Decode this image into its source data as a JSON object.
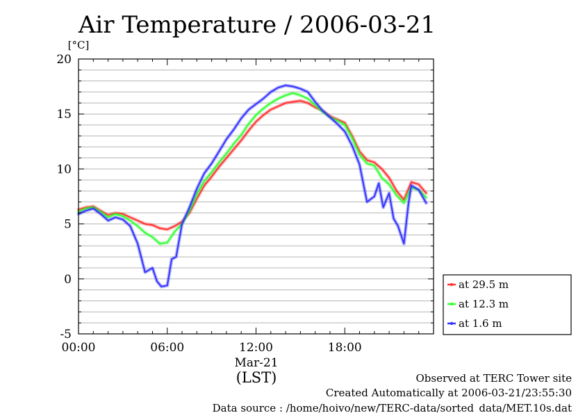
{
  "chart_data": {
    "type": "line",
    "title": "Air Temperature / 2006-03-21",
    "ylabel": "[°C]",
    "xlabel": "(LST)",
    "date_label": "Mar-21",
    "ylim": [
      -5,
      20
    ],
    "xlim_hours": [
      0,
      24
    ],
    "yticks": [
      {
        "value": -5,
        "label": "-5"
      },
      {
        "value": 0,
        "label": "0"
      },
      {
        "value": 5,
        "label": "5"
      },
      {
        "value": 10,
        "label": "10"
      },
      {
        "value": 15,
        "label": "15"
      },
      {
        "value": 20,
        "label": "20"
      }
    ],
    "xticks": [
      {
        "value": 0,
        "label": "00:00"
      },
      {
        "value": 6,
        "label": "06:00"
      },
      {
        "value": 12,
        "label": "12:00"
      },
      {
        "value": 18,
        "label": "18:00"
      }
    ],
    "grid": true,
    "legend_position": "right-bottom",
    "series": [
      {
        "name": "at 29.5 m",
        "color": "#ff3333",
        "x": [
          0,
          0.5,
          1,
          1.5,
          2,
          2.5,
          3,
          3.5,
          4,
          4.5,
          5,
          5.5,
          6,
          6.5,
          7,
          7.5,
          8,
          8.5,
          9,
          9.5,
          10,
          10.5,
          11,
          11.5,
          12,
          12.5,
          13,
          13.5,
          14,
          14.5,
          15,
          15.5,
          16,
          16.5,
          17,
          17.5,
          18,
          18.5,
          19,
          19.5,
          20,
          20.5,
          21,
          21.5,
          22,
          22.5,
          23,
          23.5
        ],
        "y": [
          6.3,
          6.5,
          6.6,
          6.2,
          5.8,
          6.0,
          5.9,
          5.6,
          5.3,
          5.0,
          4.9,
          4.6,
          4.5,
          4.8,
          5.2,
          6.0,
          7.3,
          8.5,
          9.3,
          10.2,
          11.0,
          11.8,
          12.6,
          13.5,
          14.3,
          14.9,
          15.4,
          15.7,
          16.0,
          16.1,
          16.2,
          16.0,
          15.6,
          15.3,
          14.8,
          14.5,
          14.2,
          13.0,
          11.6,
          10.8,
          10.6,
          10.0,
          9.2,
          8.0,
          7.2,
          8.8,
          8.6,
          7.8
        ]
      },
      {
        "name": "at 12.3 m",
        "color": "#33ff33",
        "x": [
          0,
          0.5,
          1,
          1.5,
          2,
          2.5,
          3,
          3.5,
          4,
          4.5,
          5,
          5.5,
          6,
          6.5,
          7,
          7.5,
          8,
          8.5,
          9,
          9.5,
          10,
          10.5,
          11,
          11.5,
          12,
          12.5,
          13,
          13.5,
          14,
          14.5,
          15,
          15.5,
          16,
          16.5,
          17,
          17.5,
          18,
          18.5,
          19,
          19.5,
          20,
          20.5,
          21,
          21.5,
          22,
          22.5,
          23,
          23.5
        ],
        "y": [
          6.1,
          6.4,
          6.5,
          6.1,
          5.6,
          5.9,
          5.7,
          5.3,
          4.8,
          4.2,
          3.8,
          3.2,
          3.3,
          4.3,
          5.0,
          6.2,
          7.7,
          8.9,
          9.7,
          10.6,
          11.4,
          12.3,
          13.1,
          14.1,
          14.9,
          15.5,
          16.0,
          16.4,
          16.7,
          16.9,
          16.7,
          16.4,
          15.8,
          15.2,
          14.7,
          14.4,
          14.0,
          12.8,
          11.3,
          10.5,
          10.3,
          9.2,
          8.6,
          7.6,
          6.9,
          8.3,
          8.1,
          7.4
        ]
      },
      {
        "name": "at 1.6 m",
        "color": "#3333ff",
        "x": [
          0,
          0.5,
          1,
          1.5,
          2,
          2.5,
          3,
          3.5,
          4,
          4.5,
          5,
          5.3,
          5.6,
          6,
          6.3,
          6.6,
          7,
          7.5,
          8,
          8.5,
          9,
          9.5,
          10,
          10.5,
          11,
          11.5,
          12,
          12.5,
          13,
          13.5,
          14,
          14.5,
          15,
          15.5,
          16,
          16.5,
          17,
          17.5,
          18,
          18.5,
          19,
          19.5,
          20,
          20.3,
          20.6,
          21,
          21.3,
          21.6,
          22,
          22.3,
          22.5,
          23,
          23.5
        ],
        "y": [
          5.9,
          6.2,
          6.4,
          5.9,
          5.3,
          5.6,
          5.4,
          4.8,
          3.2,
          0.6,
          1.0,
          -0.2,
          -0.7,
          -0.6,
          1.8,
          2.0,
          5.0,
          6.5,
          8.2,
          9.6,
          10.5,
          11.6,
          12.7,
          13.6,
          14.6,
          15.4,
          15.9,
          16.4,
          17.0,
          17.4,
          17.6,
          17.5,
          17.3,
          17.0,
          16.1,
          15.3,
          14.7,
          14.1,
          13.4,
          12.1,
          10.4,
          7.0,
          7.5,
          8.7,
          6.5,
          7.8,
          5.5,
          4.8,
          3.2,
          6.8,
          8.5,
          8.1,
          6.9
        ]
      }
    ]
  },
  "footer": {
    "line1": "Observed at TERC Tower site",
    "line2": "Created Automatically at 2006-03-21/23:55:30",
    "line3": "Data source : /home/hoivo/new/TERC-data/sorted_data/MET.10s.dat"
  }
}
